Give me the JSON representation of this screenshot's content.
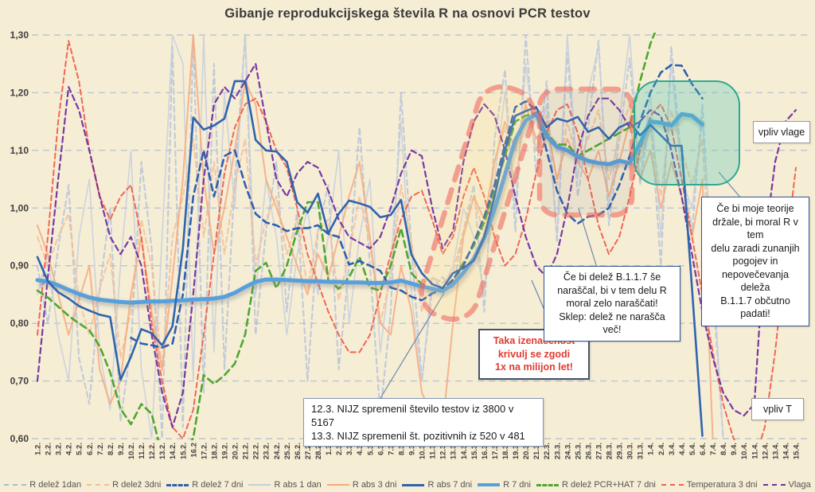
{
  "chart_data": {
    "type": "line",
    "title": "Gibanje reprodukcijskega števila R na osnovi PCR testov",
    "legend_position": "bottom",
    "grid": true,
    "y_axis": {
      "min": 0.6,
      "max": 1.3,
      "step": 0.1,
      "tick_values": [
        1.3,
        1.2,
        1.1,
        1.0,
        0.9,
        0.8,
        0.7,
        0.6
      ],
      "tick_labels": [
        "1,30",
        "1,20",
        "1,10",
        "1,00",
        "0,90",
        "0,80",
        "0,70",
        "0,60"
      ]
    },
    "x_labels": [
      "1.2.",
      "2.2.",
      "3.2.",
      "4.2.",
      "5.2.",
      "6.2.",
      "7.2.",
      "8.2.",
      "9.2.",
      "10.2.",
      "11.2.",
      "12.2.",
      "13.2.",
      "14.2.",
      "15.2.",
      "16.2",
      "17.2.",
      "18.2.",
      "19.2.",
      "20.2.",
      "21.2.",
      "22.2.",
      "23.2.",
      "24.2.",
      "25.2.",
      "26.2.",
      "27.2.",
      "28.2.",
      "1.3.",
      "2.3.",
      "3.3.",
      "4.3.",
      "5.3.",
      "6.3.",
      "7.3.",
      "8.3.",
      "9.3.",
      "10.3.",
      "11.3.",
      "12.3.",
      "13.3.",
      "14.3.",
      "15.3.",
      "16.3.",
      "17.3.",
      "18.3.",
      "19.3.",
      "20.3.",
      "21.3.",
      "22.3.",
      "23.3.",
      "24.3.",
      "25.3.",
      "26.3.",
      "27.3.",
      "28.3.",
      "29.3.",
      "30.3.",
      "31.3.",
      "1.4.",
      "2.4.",
      "3.4.",
      "4.4.",
      "5.4.",
      "6.4.",
      "7.4.",
      "8.4.",
      "9.4.",
      "10.4.",
      "11.4.",
      "12.4.",
      "13.4.",
      "14.4.",
      "15.4."
    ],
    "series": [
      {
        "id": "r-delez-1dan",
        "name": "R delež 1dan",
        "color": "#a9bcd9",
        "line_style": "dashed",
        "width": 2.1,
        "opacity": 0.7,
        "values": [
          0.9,
          0.8,
          0.93,
          1.04,
          0.74,
          0.66,
          0.86,
          1.0,
          0.63,
          0.76,
          1.08,
          0.93,
          0.6,
          1.28,
          0.62,
          1.3,
          0.68,
          1.25,
          0.72,
          1.05,
          1.3,
          0.78,
          0.96,
          1.08,
          0.82,
          1.0,
          0.7,
          0.96,
          1.04,
          0.72,
          0.9,
          1.14,
          0.9,
          0.64,
          0.82,
          1.2,
          0.93,
          0.7,
          0.86,
          0.88,
          0.86,
          0.96,
          1.04,
          0.82,
          1.12,
          1.24,
          0.96,
          1.3,
          1.06,
          1.22,
          0.94,
          1.27,
          1.02,
          1.14,
          1.29,
          0.97,
          1.12,
          1.26,
          1.04,
          1.16,
          0.9,
          1.28,
          1.08,
          0.96,
          1.18,
          0.86,
          0.6,
          null,
          null,
          null,
          null,
          null,
          null,
          null
        ]
      },
      {
        "id": "r-abs-1dan",
        "name": "R abs 1 dan",
        "color": "#c4cedd",
        "line_style": "solid",
        "width": 1.6,
        "opacity": 0.85,
        "values": [
          0.85,
          0.92,
          0.78,
          0.7,
          0.95,
          1.05,
          0.75,
          0.65,
          0.9,
          1.1,
          0.72,
          0.6,
          0.95,
          1.3,
          1.25,
          0.7,
          1.3,
          0.75,
          1.2,
          1.0,
          1.3,
          0.85,
          1.05,
          0.95,
          0.78,
          0.92,
          1.0,
          0.85,
          0.95,
          1.1,
          0.8,
          0.95,
          1.05,
          0.75,
          0.9,
          1.15,
          0.85,
          0.7,
          0.88,
          0.86,
          0.9,
          1.0,
          0.95,
          0.85,
          1.05,
          1.2,
          1.0,
          1.25,
          1.1,
          1.18,
          0.95,
          1.3,
          1.05,
          1.2,
          1.28,
          1.0,
          1.15,
          1.3,
          1.05,
          1.2,
          0.95,
          1.25,
          1.05,
          1.0,
          1.15,
          0.9,
          0.6,
          null,
          null,
          null,
          null,
          null,
          null,
          null
        ]
      },
      {
        "id": "r-delez-3dni",
        "name": "R delež 3dni",
        "color": "#f3bd96",
        "line_style": "dashed",
        "width": 2.1,
        "opacity": 0.8,
        "values": [
          0.95,
          0.9,
          0.95,
          0.99,
          0.84,
          0.78,
          0.86,
          0.92,
          0.74,
          0.82,
          0.98,
          0.9,
          0.72,
          0.95,
          1.02,
          1.12,
          0.95,
          1.08,
          0.92,
          1.04,
          1.12,
          0.9,
          0.98,
          1.02,
          0.92,
          0.98,
          0.86,
          0.96,
          0.98,
          0.84,
          0.92,
          1.02,
          0.94,
          0.8,
          0.88,
          1.04,
          0.94,
          0.82,
          0.88,
          0.87,
          0.89,
          0.96,
          1.02,
          0.95,
          1.08,
          1.14,
          1.04,
          1.18,
          1.1,
          1.16,
          1.04,
          1.15,
          1.08,
          1.12,
          1.17,
          1.05,
          1.12,
          1.18,
          1.08,
          1.14,
          1.02,
          1.17,
          1.1,
          1.04,
          1.12,
          0.8,
          null,
          null,
          null,
          null,
          null,
          null,
          null,
          null
        ]
      },
      {
        "id": "r-abs-3dni",
        "name": "R abs 3 dni",
        "color": "#f4a97e",
        "line_style": "solid",
        "width": 2.0,
        "opacity": 0.85,
        "values": [
          0.97,
          0.92,
          0.85,
          0.78,
          0.84,
          0.9,
          0.72,
          0.66,
          0.7,
          0.85,
          0.95,
          0.82,
          0.72,
          0.88,
          1.05,
          1.3,
          1.05,
          0.92,
          1.0,
          1.1,
          1.22,
          1.18,
          1.05,
          1.0,
          0.95,
          0.9,
          0.85,
          0.92,
          0.88,
          0.95,
          1.02,
          1.08,
          0.95,
          0.8,
          0.78,
          0.9,
          0.82,
          0.68,
          0.64,
          0.62,
          0.8,
          0.95,
          1.02,
          0.98,
          1.08,
          1.15,
          1.1,
          1.18,
          1.12,
          1.15,
          1.05,
          1.12,
          1.08,
          1.05,
          1.1,
          1.02,
          1.08,
          1.15,
          1.05,
          1.1,
          1.0,
          1.08,
          1.02,
          0.95,
          1.05,
          0.6,
          null,
          null,
          null,
          null,
          null,
          null,
          null,
          null
        ]
      },
      {
        "id": "temperatura-3dni",
        "name": "Temperatura 3 dni",
        "color": "#f0604d",
        "line_style": "dashed",
        "width": 2.0,
        "opacity": 0.95,
        "values": [
          0.78,
          0.95,
          1.15,
          1.29,
          1.22,
          1.1,
          1.02,
          0.98,
          1.02,
          1.04,
          0.95,
          0.8,
          0.7,
          0.62,
          0.6,
          0.65,
          0.78,
          0.92,
          1.06,
          1.14,
          1.18,
          1.19,
          1.15,
          1.1,
          1.07,
          1.0,
          0.92,
          0.87,
          0.82,
          0.78,
          0.75,
          0.75,
          0.78,
          0.85,
          0.92,
          0.98,
          1.02,
          1.03,
          0.98,
          0.92,
          0.95,
          1.02,
          1.07,
          1.02,
          0.95,
          0.9,
          0.92,
          0.98,
          1.06,
          1.13,
          1.17,
          1.18,
          1.13,
          1.05,
          0.97,
          0.92,
          0.95,
          1.02,
          1.1,
          1.16,
          1.18,
          1.14,
          1.05,
          0.95,
          0.85,
          0.75,
          0.66,
          0.6,
          0.57,
          0.56,
          0.62,
          0.75,
          0.92,
          1.07
        ]
      },
      {
        "id": "vlaga",
        "name": "Vlaga",
        "color": "#7030a0",
        "line_style": "dashed",
        "width": 2.2,
        "opacity": 0.95,
        "values": [
          0.7,
          0.88,
          1.05,
          1.21,
          1.17,
          1.1,
          1.02,
          0.95,
          0.92,
          0.95,
          0.9,
          0.78,
          0.68,
          0.62,
          0.68,
          0.85,
          1.05,
          1.18,
          1.21,
          1.19,
          1.22,
          1.25,
          1.15,
          1.05,
          1.02,
          1.06,
          1.08,
          1.07,
          1.03,
          0.98,
          0.95,
          0.94,
          0.93,
          0.95,
          1.0,
          1.06,
          1.1,
          1.09,
          1.0,
          0.93,
          0.96,
          1.08,
          1.15,
          1.18,
          1.16,
          1.1,
          1.02,
          0.95,
          0.9,
          0.88,
          0.92,
          1.0,
          1.1,
          1.16,
          1.19,
          1.19,
          1.17,
          1.14,
          1.15,
          1.17,
          1.16,
          1.1,
          1.02,
          0.92,
          0.82,
          0.74,
          0.68,
          0.65,
          0.64,
          0.66,
          0.94,
          1.08,
          1.15,
          1.17
        ]
      },
      {
        "id": "r-delez-pcr-hat-7dni",
        "name": "R delež PCR+HAT 7 dni",
        "color": "#4ea72e",
        "line_style": "dashed",
        "width": 2.6,
        "opacity": 1,
        "values": [
          0.857,
          0.845,
          0.829,
          0.813,
          0.8,
          0.788,
          0.76,
          0.715,
          0.652,
          0.625,
          0.66,
          0.643,
          0.57,
          0.56,
          0.575,
          0.601,
          0.71,
          0.695,
          0.71,
          0.73,
          0.781,
          0.891,
          0.905,
          0.861,
          0.9,
          0.96,
          1.01,
          1.01,
          0.875,
          0.86,
          0.88,
          0.915,
          0.862,
          0.857,
          0.9,
          0.965,
          0.887,
          0.868,
          0.86,
          0.858,
          0.875,
          0.905,
          0.935,
          0.975,
          1.03,
          1.09,
          1.15,
          1.16,
          1.165,
          1.13,
          1.11,
          1.11,
          1.09,
          1.1,
          1.11,
          1.12,
          1.13,
          1.14,
          1.22,
          1.285,
          1.33,
          null,
          null,
          null,
          null,
          null,
          null,
          null,
          null,
          null,
          null,
          null,
          null,
          null
        ]
      },
      {
        "id": "r-delez-7dni",
        "name": "R delež 7 dni",
        "color": "#2e5fae",
        "line_style": "dashed",
        "width": 2.6,
        "opacity": 1,
        "values": [
          null,
          null,
          null,
          null,
          null,
          null,
          null,
          null,
          null,
          0.775,
          0.765,
          0.762,
          0.758,
          0.765,
          0.85,
          1.02,
          1.1,
          1.02,
          1.09,
          1.1,
          1.04,
          0.99,
          0.975,
          0.97,
          0.96,
          0.965,
          0.965,
          0.97,
          0.955,
          0.95,
          0.902,
          0.908,
          0.9,
          0.891,
          0.862,
          0.857,
          0.846,
          0.84,
          0.852,
          0.858,
          0.876,
          0.9,
          0.94,
          0.985,
          1.04,
          1.11,
          1.175,
          1.185,
          1.17,
          1.1,
          1.03,
          0.99,
          0.973,
          0.985,
          0.988,
          1.0,
          1.04,
          1.09,
          1.15,
          1.2,
          1.235,
          1.248,
          1.247,
          1.215,
          1.19,
          null,
          null,
          null,
          null,
          null,
          null,
          null,
          null,
          null
        ]
      },
      {
        "id": "r-7dni",
        "name": "R 7 dni",
        "color": "#56a0dc",
        "line_style": "solid",
        "width": 5.0,
        "opacity": 1,
        "shadow": true,
        "values": [
          0.875,
          0.872,
          0.866,
          0.858,
          0.851,
          0.845,
          0.841,
          0.839,
          0.837,
          0.836,
          0.837,
          0.838,
          0.838,
          0.839,
          0.84,
          0.841,
          0.842,
          0.843,
          0.846,
          0.853,
          0.863,
          0.872,
          0.876,
          0.876,
          0.875,
          0.874,
          0.873,
          0.873,
          0.872,
          0.872,
          0.871,
          0.871,
          0.87,
          0.87,
          0.871,
          0.874,
          0.869,
          0.864,
          0.86,
          0.856,
          0.868,
          0.888,
          0.912,
          0.948,
          0.998,
          1.058,
          1.118,
          1.152,
          1.163,
          1.125,
          1.106,
          1.1,
          1.089,
          1.082,
          1.078,
          1.076,
          1.082,
          1.078,
          1.112,
          1.15,
          1.148,
          1.143,
          1.163,
          1.16,
          1.145,
          null,
          null,
          null,
          null,
          null,
          null,
          null,
          null,
          null
        ]
      },
      {
        "id": "r-abs-7dni",
        "name": "R abs 7 dni",
        "color": "#2e64ae",
        "line_style": "solid",
        "width": 2.6,
        "opacity": 1,
        "values": [
          0.915,
          0.873,
          0.854,
          0.843,
          0.83,
          0.822,
          0.815,
          0.811,
          0.702,
          0.742,
          0.79,
          0.783,
          0.762,
          0.795,
          0.93,
          1.157,
          1.136,
          1.143,
          1.155,
          1.22,
          1.22,
          1.118,
          1.1,
          1.098,
          1.08,
          1.01,
          0.992,
          1.025,
          0.956,
          0.99,
          1.013,
          1.008,
          1.002,
          0.984,
          0.988,
          1.014,
          0.919,
          0.887,
          0.868,
          0.861,
          0.887,
          0.896,
          0.909,
          0.95,
          1.02,
          1.1,
          1.16,
          1.168,
          1.175,
          1.14,
          1.155,
          1.15,
          1.158,
          1.132,
          1.14,
          1.12,
          1.14,
          1.148,
          1.126,
          1.144,
          1.126,
          1.108,
          1.108,
          0.86,
          0.605,
          null,
          null,
          null,
          null,
          null,
          null,
          null,
          null,
          null
        ]
      }
    ],
    "legend_order": [
      "R delež 1dan",
      "R delež 3dni",
      "R delež 7 dni",
      "R abs 1 dan",
      "R abs 3 dni",
      "R abs 7 dni",
      "R 7 dni",
      "R delež PCR+HAT 7 dni",
      "Temperatura 3 dni",
      "Vlaga"
    ]
  },
  "annotations": {
    "nijz": "12.3. NIJZ spremenil število testov iz 3800 v 5167\n13.3. NIJZ spremenil št. pozitivnih iz 520 v 481",
    "taka": "Taka izenačenost\nkrivulj se zgodi\n1x na milijon let!",
    "b117": "Če bi delež B.1.1.7 še\nnaraščal, bi v tem delu R\nmoral zelo naraščati!\nSklep: delež ne narašča več!",
    "theory": "Če bi moje teorije\ndržale, bi moral R v tem\ndelu zaradi zunanjih\npogojev in\nnepovečevanja deleža\nB.1.1.7 občutno padati!",
    "vpliv_vlage": "vpliv vlage",
    "vpliv_t": "vpliv T"
  },
  "colors": {
    "background": "#f6edd5",
    "grid": "#bcc5d2",
    "axis_text": "#3f3f3f",
    "annotation_red_text": "#e03c31",
    "highlight_red_stroke": "#ef6a5e",
    "highlight_yellow_fill": "rgba(247,214,124,0.28)",
    "highlight_gray_fill": "rgba(110,110,110,0.17)",
    "highlight_teal_fill": "rgba(77,200,180,0.30)",
    "highlight_teal_stroke": "#2fa893",
    "leader_line": "#6b87a8"
  }
}
